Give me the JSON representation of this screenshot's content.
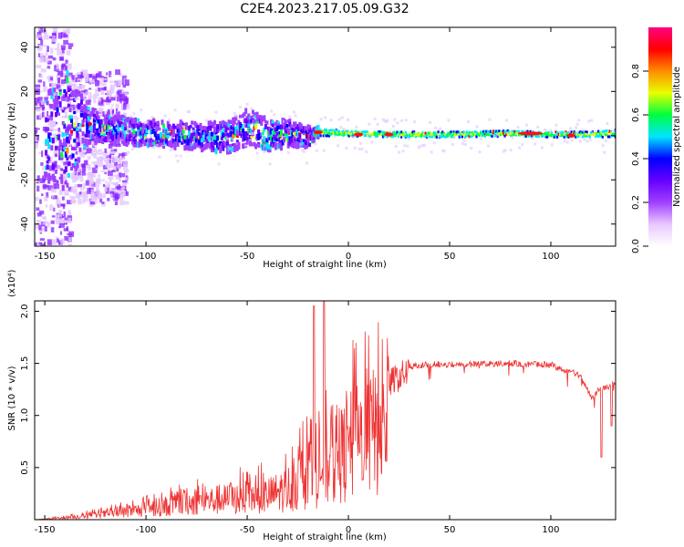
{
  "title": "C2E4.2023.217.05.09.G32",
  "chart_data": [
    {
      "type": "heatmap",
      "xlabel": "Height of straight line (km)",
      "ylabel": "Frequency (Hz)",
      "xlim": [
        -155,
        132
      ],
      "ylim": [
        -50,
        49
      ],
      "xticks": [
        -150,
        -100,
        -50,
        0,
        50,
        100
      ],
      "yticks": [
        -40,
        -20,
        0,
        20,
        40
      ],
      "colorbar": {
        "label": "Normalized spectral amplitude",
        "range": [
          0.0,
          1.0
        ],
        "ticks": [
          0.0,
          0.2,
          0.4,
          0.6,
          0.8
        ],
        "colormap": [
          "#ffffff",
          "#e9c8ff",
          "#a040ff",
          "#6600ff",
          "#0000ff",
          "#00e5ff",
          "#00ff40",
          "#e8ff00",
          "#ff8c00",
          "#ff0000",
          "#ff0080"
        ]
      },
      "profile": {
        "description_points_km": [
          -150,
          -140,
          -130,
          -120,
          -100,
          -80,
          -60,
          -50,
          -40,
          -30,
          -20,
          -15,
          0,
          20,
          50,
          80,
          100,
          120,
          130
        ],
        "center_hz": [
          0,
          3,
          5,
          3,
          1,
          0,
          -1,
          4,
          0,
          1,
          -1,
          1.5,
          1,
          0.5,
          0.5,
          1,
          0.5,
          0.5,
          1
        ],
        "halfwidth_hz": [
          20,
          30,
          8,
          6,
          6,
          6,
          7,
          8,
          7,
          6,
          5,
          2,
          1.5,
          1.5,
          1.5,
          1.5,
          1.5,
          1.5,
          2
        ]
      }
    },
    {
      "type": "line",
      "xlabel": "Height of straight line (km)",
      "ylabel": "SNR (10 * v/v)",
      "y_multiplier": "(x10⁴)",
      "xlim": [
        -155,
        132
      ],
      "ylim": [
        0,
        2.1
      ],
      "xticks": [
        -150,
        -100,
        -50,
        0,
        50,
        100
      ],
      "yticks": [
        0.5,
        1.0,
        1.5,
        2.0
      ],
      "line_color": "#ee3333",
      "envelope": {
        "x": [
          -155,
          -140,
          -120,
          -100,
          -80,
          -60,
          -40,
          -30,
          -25,
          -20,
          -15,
          -10,
          -5,
          0,
          10,
          20,
          30,
          40,
          60,
          80,
          90,
          100,
          105,
          110,
          115,
          120,
          125,
          128,
          132
        ],
        "y": [
          0.0,
          0.03,
          0.08,
          0.15,
          0.25,
          0.3,
          0.35,
          0.45,
          0.55,
          0.65,
          0.7,
          0.8,
          0.9,
          1.05,
          1.25,
          1.38,
          1.5,
          1.52,
          1.52,
          1.53,
          1.52,
          1.52,
          1.47,
          1.45,
          1.4,
          1.2,
          1.3,
          1.3,
          1.35
        ]
      },
      "spikes": [
        {
          "x": -17,
          "y": 2.05
        },
        {
          "x": -12,
          "y": 2.1
        },
        {
          "x": 7,
          "y": 0.38
        },
        {
          "x": 125,
          "y": 0.6
        },
        {
          "x": 130,
          "y": 0.9
        }
      ]
    }
  ]
}
